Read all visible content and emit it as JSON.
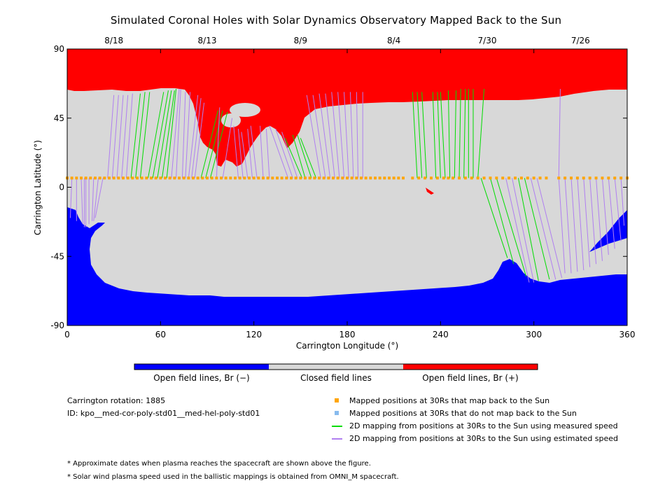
{
  "title": "Simulated Coronal Holes with Solar Dynamics Observatory Mapped Back to the Sun",
  "colors": {
    "negative": "#0000ff",
    "closed": "#d8d8d8",
    "positive": "#ff0000",
    "mapped": "#ffa500",
    "unmapped": "#88bbee",
    "measured": "#00dd00",
    "estimated": "#b07ff0"
  },
  "chart_data": {
    "type": "map",
    "xlabel": "Carrington Longitude (°)",
    "ylabel": "Carrington Latitude (°)",
    "xlim": [
      0,
      360
    ],
    "ylim": [
      -90,
      90
    ],
    "xticks": [
      0,
      60,
      120,
      180,
      240,
      300,
      360
    ],
    "yticks": [
      -90,
      -45,
      0,
      45,
      90
    ],
    "top_axis": {
      "ticks": [
        {
          "label": "8/18",
          "longitude": 30
        },
        {
          "label": "8/13",
          "longitude": 90
        },
        {
          "label": "8/9",
          "longitude": 150
        },
        {
          "label": "8/4",
          "longitude": 210
        },
        {
          "label": "7/30",
          "longitude": 270
        },
        {
          "label": "7/26",
          "longitude": 330
        }
      ]
    },
    "mapped_latitude_at_30Rs": 6,
    "mapped_longitudes_at_30Rs": [
      0,
      3,
      6,
      9,
      12,
      15,
      18,
      21,
      24,
      27,
      30,
      33,
      36,
      39,
      42,
      45,
      48,
      51,
      54,
      57,
      60,
      63,
      66,
      69,
      72,
      75,
      78,
      81,
      84,
      87,
      90,
      93,
      96,
      99,
      102,
      105,
      108,
      111,
      114,
      117,
      120,
      123,
      126,
      129,
      132,
      135,
      138,
      141,
      144,
      147,
      150,
      153,
      156,
      159,
      162,
      165,
      168,
      171,
      174,
      177,
      180,
      183,
      186,
      189,
      192,
      195,
      198,
      201,
      204,
      207,
      210,
      213,
      216,
      222,
      226,
      230,
      234,
      238,
      242,
      245,
      248,
      252,
      256,
      260,
      264,
      268,
      272,
      276,
      280,
      284,
      288,
      292,
      296,
      300,
      304,
      308,
      316,
      320,
      324,
      328,
      332,
      336,
      340,
      344,
      348,
      352,
      356,
      360
    ],
    "mappings": [
      {
        "type": "estimated",
        "from": 0,
        "to": [
          0,
          -14
        ]
      },
      {
        "type": "estimated",
        "from": 3,
        "to": [
          2,
          -20
        ]
      },
      {
        "type": "estimated",
        "from": 6,
        "to": [
          6,
          -22
        ]
      },
      {
        "type": "estimated",
        "from": 9,
        "to": [
          10,
          -24
        ]
      },
      {
        "type": "estimated",
        "from": 11,
        "to": [
          11,
          -26
        ]
      },
      {
        "type": "estimated",
        "from": 12,
        "to": [
          12,
          -26
        ]
      },
      {
        "type": "estimated",
        "from": 14,
        "to": [
          14,
          -24
        ]
      },
      {
        "type": "estimated",
        "from": 17,
        "to": [
          16,
          -22
        ]
      },
      {
        "type": "estimated",
        "from": 20,
        "to": [
          17,
          -22
        ]
      },
      {
        "type": "estimated",
        "from": 23,
        "to": [
          18,
          -20
        ]
      },
      {
        "type": "estimated",
        "from": 26,
        "to": [
          30,
          60
        ]
      },
      {
        "type": "estimated",
        "from": 29,
        "to": [
          33,
          60
        ]
      },
      {
        "type": "estimated",
        "from": 32,
        "to": [
          36,
          60
        ]
      },
      {
        "type": "estimated",
        "from": 35,
        "to": [
          39,
          60
        ]
      },
      {
        "type": "estimated",
        "from": 38,
        "to": [
          42,
          61
        ]
      },
      {
        "type": "measured",
        "from": 41,
        "to": [
          47,
          61
        ]
      },
      {
        "type": "measured",
        "from": 44,
        "to": [
          50,
          62
        ]
      },
      {
        "type": "measured",
        "from": 47,
        "to": [
          53,
          62
        ]
      },
      {
        "type": "measured",
        "from": 52,
        "to": [
          62,
          62
        ]
      },
      {
        "type": "measured",
        "from": 55,
        "to": [
          65,
          63
        ]
      },
      {
        "type": "measured",
        "from": 58,
        "to": [
          67,
          63
        ]
      },
      {
        "type": "measured",
        "from": 61,
        "to": [
          69,
          63
        ]
      },
      {
        "type": "measured",
        "from": 64,
        "to": [
          70,
          64
        ]
      },
      {
        "type": "estimated",
        "from": 67,
        "to": [
          72,
          64
        ]
      },
      {
        "type": "estimated",
        "from": 70,
        "to": [
          73,
          64
        ]
      },
      {
        "type": "estimated",
        "from": 74,
        "to": [
          76,
          62
        ]
      },
      {
        "type": "estimated",
        "from": 76,
        "to": [
          79,
          62
        ]
      },
      {
        "type": "estimated",
        "from": 78,
        "to": [
          84,
          60
        ]
      },
      {
        "type": "estimated",
        "from": 80,
        "to": [
          86,
          58
        ]
      },
      {
        "type": "estimated",
        "from": 82,
        "to": [
          88,
          55
        ]
      },
      {
        "type": "measured",
        "from": 86,
        "to": [
          97,
          50
        ]
      },
      {
        "type": "measured",
        "from": 89,
        "to": [
          100,
          50
        ]
      },
      {
        "type": "measured",
        "from": 92,
        "to": [
          103,
          49
        ]
      },
      {
        "type": "estimated",
        "from": 96,
        "to": [
          98,
          52
        ]
      },
      {
        "type": "estimated",
        "from": 100,
        "to": [
          106,
          45
        ]
      },
      {
        "type": "estimated",
        "from": 110,
        "to": [
          107,
          40
        ]
      },
      {
        "type": "estimated",
        "from": 113,
        "to": [
          110,
          38
        ]
      },
      {
        "type": "estimated",
        "from": 116,
        "to": [
          112,
          36
        ]
      },
      {
        "type": "estimated",
        "from": 119,
        "to": [
          116,
          38
        ]
      },
      {
        "type": "estimated",
        "from": 122,
        "to": [
          118,
          40
        ]
      },
      {
        "type": "estimated",
        "from": 126,
        "to": [
          124,
          40
        ]
      },
      {
        "type": "estimated",
        "from": 130,
        "to": [
          128,
          38
        ]
      },
      {
        "type": "estimated",
        "from": 142,
        "to": [
          130,
          40
        ]
      },
      {
        "type": "estimated",
        "from": 145,
        "to": [
          134,
          38
        ]
      },
      {
        "type": "estimated",
        "from": 148,
        "to": [
          138,
          36
        ]
      },
      {
        "type": "measured",
        "from": 151,
        "to": [
          140,
          32
        ]
      },
      {
        "type": "measured",
        "from": 153,
        "to": [
          145,
          34
        ]
      },
      {
        "type": "measured",
        "from": 157,
        "to": [
          148,
          34
        ]
      },
      {
        "type": "measured",
        "from": 160,
        "to": [
          150,
          32
        ]
      },
      {
        "type": "estimated",
        "from": 163,
        "to": [
          154,
          60
        ]
      },
      {
        "type": "estimated",
        "from": 166,
        "to": [
          158,
          60
        ]
      },
      {
        "type": "estimated",
        "from": 169,
        "to": [
          162,
          61
        ]
      },
      {
        "type": "estimated",
        "from": 172,
        "to": [
          166,
          61
        ]
      },
      {
        "type": "estimated",
        "from": 175,
        "to": [
          170,
          62
        ]
      },
      {
        "type": "estimated",
        "from": 178,
        "to": [
          174,
          62
        ]
      },
      {
        "type": "estimated",
        "from": 181,
        "to": [
          178,
          62
        ]
      },
      {
        "type": "estimated",
        "from": 184,
        "to": [
          182,
          62
        ]
      },
      {
        "type": "estimated",
        "from": 187,
        "to": [
          186,
          62
        ]
      },
      {
        "type": "estimated",
        "from": 190,
        "to": [
          190,
          62
        ]
      },
      {
        "type": "measured",
        "from": 225,
        "to": [
          222,
          62
        ]
      },
      {
        "type": "measured",
        "from": 228,
        "to": [
          225,
          62
        ]
      },
      {
        "type": "measured",
        "from": 231,
        "to": [
          228,
          62
        ]
      },
      {
        "type": "measured",
        "from": 237,
        "to": [
          235,
          62
        ]
      },
      {
        "type": "measured",
        "from": 240,
        "to": [
          238,
          62
        ]
      },
      {
        "type": "measured",
        "from": 243,
        "to": [
          240,
          62
        ]
      },
      {
        "type": "measured",
        "from": 246,
        "to": [
          245,
          63
        ]
      },
      {
        "type": "measured",
        "from": 249,
        "to": [
          250,
          63
        ]
      },
      {
        "type": "measured",
        "from": 252,
        "to": [
          253,
          64
        ]
      },
      {
        "type": "measured",
        "from": 255,
        "to": [
          256,
          64
        ]
      },
      {
        "type": "measured",
        "from": 258,
        "to": [
          258,
          64
        ]
      },
      {
        "type": "measured",
        "from": 261,
        "to": [
          261,
          64
        ]
      },
      {
        "type": "measured",
        "from": 264,
        "to": [
          268,
          64
        ]
      },
      {
        "type": "measured",
        "from": 266,
        "to": [
          283,
          -46
        ]
      },
      {
        "type": "measured",
        "from": 272,
        "to": [
          287,
          -50
        ]
      },
      {
        "type": "measured",
        "from": 276,
        "to": [
          295,
          -58
        ]
      },
      {
        "type": "estimated",
        "from": 282,
        "to": [
          297,
          -62
        ]
      },
      {
        "type": "estimated",
        "from": 286,
        "to": [
          300,
          -62
        ]
      },
      {
        "type": "measured",
        "from": 290,
        "to": [
          303,
          -61
        ]
      },
      {
        "type": "measured",
        "from": 294,
        "to": [
          310,
          -60
        ]
      },
      {
        "type": "estimated",
        "from": 298,
        "to": [
          314,
          -60
        ]
      },
      {
        "type": "estimated",
        "from": 302,
        "to": [
          318,
          -59
        ]
      },
      {
        "type": "estimated",
        "from": 316,
        "to": [
          320,
          -56
        ]
      },
      {
        "type": "estimated",
        "from": 320,
        "to": [
          324,
          -56
        ]
      },
      {
        "type": "estimated",
        "from": 324,
        "to": [
          328,
          -55
        ]
      },
      {
        "type": "estimated",
        "from": 328,
        "to": [
          332,
          -54
        ]
      },
      {
        "type": "estimated",
        "from": 332,
        "to": [
          336,
          -52
        ]
      },
      {
        "type": "estimated",
        "from": 336,
        "to": [
          340,
          -50
        ]
      },
      {
        "type": "estimated",
        "from": 340,
        "to": [
          344,
          -48
        ]
      },
      {
        "type": "estimated",
        "from": 344,
        "to": [
          348,
          -44
        ]
      },
      {
        "type": "estimated",
        "from": 348,
        "to": [
          352,
          -40
        ]
      },
      {
        "type": "estimated",
        "from": 352,
        "to": [
          356,
          -35
        ]
      },
      {
        "type": "estimated",
        "from": 356,
        "to": [
          358,
          -25
        ]
      },
      {
        "type": "estimated",
        "from": 360,
        "to": [
          360,
          -15
        ]
      },
      {
        "type": "estimated",
        "from": 316,
        "to": [
          317,
          64
        ]
      }
    ]
  },
  "colorbar": {
    "labels": [
      "Open field lines, Br (−)",
      "Closed field lines",
      "Open field lines, Br (+)"
    ]
  },
  "info": {
    "rotation": "Carrington rotation: 1885",
    "id": "ID: kpo__med-cor-poly-std01__med-hel-poly-std01"
  },
  "legend": [
    {
      "label": "Mapped positions at 30Rs that map back to the Sun",
      "kind": "square",
      "color_key": "mapped"
    },
    {
      "label": "Mapped positions at 30Rs that do not map back to the Sun",
      "kind": "square",
      "color_key": "unmapped"
    },
    {
      "label": "2D mapping from positions at 30Rs to the Sun using measured speed",
      "kind": "line",
      "color_key": "measured"
    },
    {
      "label": "2D mapping from positions at 30Rs to the Sun using estimated speed",
      "kind": "line",
      "color_key": "estimated"
    }
  ],
  "footnotes": [
    "* Approximate dates when plasma reaches the spacecraft are shown above the figure.",
    "* Solar wind plasma speed used in the ballistic mappings is obtained from OMNI_M spacecraft."
  ]
}
